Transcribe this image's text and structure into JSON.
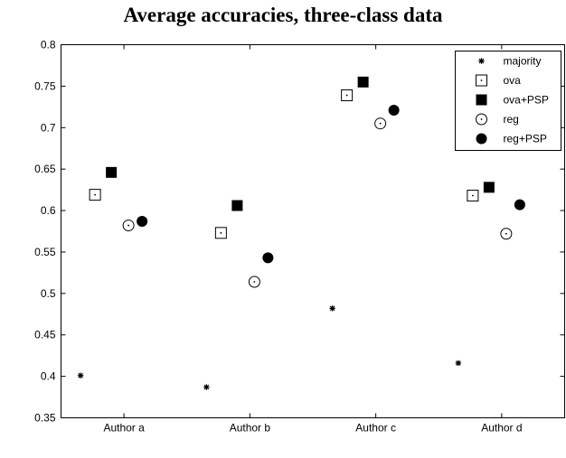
{
  "chart_data": {
    "type": "scatter",
    "title": "Average accuracies, three-class data",
    "xlabel": "",
    "ylabel": "",
    "categories": [
      "Author a",
      "Author b",
      "Author c",
      "Author d"
    ],
    "ylim": [
      0.35,
      0.8
    ],
    "yticks": [
      "0.35",
      "0.4",
      "0.45",
      "0.5",
      "0.55",
      "0.6",
      "0.65",
      "0.7",
      "0.75",
      "0.8"
    ],
    "grid": false,
    "legend_position": "top-right",
    "series": [
      {
        "name": "majority",
        "marker": "asterisk",
        "values": [
          0.401,
          0.387,
          0.482,
          0.416
        ]
      },
      {
        "name": "ova",
        "marker": "square-dot",
        "values": [
          0.619,
          0.573,
          0.739,
          0.618
        ]
      },
      {
        "name": "ova+PSP",
        "marker": "filled-square",
        "values": [
          0.646,
          0.606,
          0.755,
          0.628
        ]
      },
      {
        "name": "reg",
        "marker": "circle-dot",
        "values": [
          0.582,
          0.514,
          0.705,
          0.572
        ]
      },
      {
        "name": "reg+PSP",
        "marker": "filled-circle",
        "values": [
          0.587,
          0.543,
          0.721,
          0.607
        ]
      }
    ]
  }
}
